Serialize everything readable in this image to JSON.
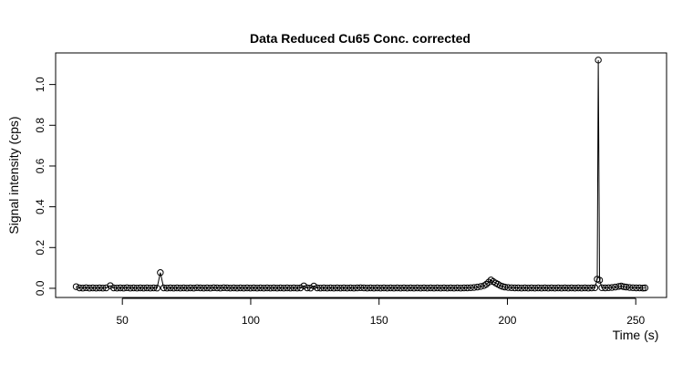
{
  "chart_data": {
    "type": "scatter",
    "title": "Data Reduced Cu65 Conc. corrected",
    "xlabel": "Time (s)",
    "ylabel": "Signal intensity (cps)",
    "xlim": [
      24,
      262
    ],
    "ylim": [
      -0.045,
      1.155
    ],
    "x_ticks": [
      50,
      100,
      150,
      200,
      250
    ],
    "x_tick_labels": [
      "50",
      "100",
      "150",
      "200",
      "250"
    ],
    "y_ticks": [
      0.0,
      0.2,
      0.4,
      0.6,
      0.8,
      1.0
    ],
    "y_tick_labels": [
      "0.0",
      "0.2",
      "0.4",
      "0.6",
      "0.8",
      "1.0"
    ],
    "grid": false,
    "legend": "none",
    "marker": "open-circle",
    "line_color": "#000000",
    "series": [
      {
        "points": [
          [
            32.0,
            0.008
          ],
          [
            33.3,
            0.002
          ],
          [
            34.6,
            0.001
          ],
          [
            35.9,
            0.003
          ],
          [
            37.2,
            0.001
          ],
          [
            38.5,
            0.002
          ],
          [
            39.8,
            0.001
          ],
          [
            41.1,
            0.002
          ],
          [
            42.4,
            0.001
          ],
          [
            43.7,
            0.002
          ],
          [
            45.3,
            0.013
          ],
          [
            46.6,
            0.002
          ],
          [
            47.9,
            0.001
          ],
          [
            49.2,
            0.002
          ],
          [
            50.5,
            0.001
          ],
          [
            51.8,
            0.003
          ],
          [
            53.1,
            0.001
          ],
          [
            54.4,
            0.002
          ],
          [
            55.7,
            0.001
          ],
          [
            57.0,
            0.002
          ],
          [
            58.3,
            0.001
          ],
          [
            59.6,
            0.002
          ],
          [
            60.9,
            0.001
          ],
          [
            62.2,
            0.002
          ],
          [
            63.5,
            0.001
          ],
          [
            64.8,
            0.077
          ],
          [
            66.1,
            0.002
          ],
          [
            67.4,
            0.001
          ],
          [
            68.7,
            0.002
          ],
          [
            70.0,
            0.001
          ],
          [
            71.3,
            0.002
          ],
          [
            72.6,
            0.001
          ],
          [
            73.9,
            0.002
          ],
          [
            75.2,
            0.001
          ],
          [
            76.5,
            0.002
          ],
          [
            77.8,
            0.001
          ],
          [
            79.1,
            0.003
          ],
          [
            80.4,
            0.002
          ],
          [
            81.7,
            0.001
          ],
          [
            83.0,
            0.002
          ],
          [
            84.3,
            0.001
          ],
          [
            85.6,
            0.003
          ],
          [
            86.9,
            0.002
          ],
          [
            88.2,
            0.001
          ],
          [
            89.5,
            0.003
          ],
          [
            90.8,
            0.002
          ],
          [
            92.1,
            0.001
          ],
          [
            93.4,
            0.002
          ],
          [
            94.7,
            0.001
          ],
          [
            96.0,
            0.002
          ],
          [
            97.3,
            0.001
          ],
          [
            98.6,
            0.002
          ],
          [
            99.9,
            0.001
          ],
          [
            101.2,
            0.002
          ],
          [
            102.5,
            0.001
          ],
          [
            103.8,
            0.002
          ],
          [
            105.1,
            0.001
          ],
          [
            106.4,
            0.002
          ],
          [
            107.7,
            0.001
          ],
          [
            109.0,
            0.002
          ],
          [
            110.3,
            0.001
          ],
          [
            111.6,
            0.002
          ],
          [
            112.9,
            0.001
          ],
          [
            114.2,
            0.002
          ],
          [
            115.5,
            0.001
          ],
          [
            116.8,
            0.002
          ],
          [
            118.1,
            0.001
          ],
          [
            119.4,
            0.002
          ],
          [
            120.7,
            0.012
          ],
          [
            122.0,
            0.002
          ],
          [
            123.3,
            0.001
          ],
          [
            124.6,
            0.011
          ],
          [
            125.9,
            0.002
          ],
          [
            127.2,
            0.001
          ],
          [
            128.5,
            0.002
          ],
          [
            129.8,
            0.001
          ],
          [
            131.1,
            0.002
          ],
          [
            132.4,
            0.001
          ],
          [
            133.7,
            0.002
          ],
          [
            135.0,
            0.001
          ],
          [
            136.3,
            0.002
          ],
          [
            137.6,
            0.001
          ],
          [
            138.9,
            0.002
          ],
          [
            140.2,
            0.001
          ],
          [
            141.5,
            0.002
          ],
          [
            142.8,
            0.003
          ],
          [
            144.1,
            0.002
          ],
          [
            145.4,
            0.001
          ],
          [
            146.7,
            0.002
          ],
          [
            148.0,
            0.001
          ],
          [
            149.3,
            0.002
          ],
          [
            150.6,
            0.001
          ],
          [
            151.9,
            0.002
          ],
          [
            153.2,
            0.001
          ],
          [
            154.5,
            0.002
          ],
          [
            155.8,
            0.001
          ],
          [
            157.1,
            0.002
          ],
          [
            158.4,
            0.001
          ],
          [
            159.7,
            0.002
          ],
          [
            161.0,
            0.001
          ],
          [
            162.3,
            0.002
          ],
          [
            163.6,
            0.001
          ],
          [
            164.9,
            0.002
          ],
          [
            166.2,
            0.001
          ],
          [
            167.5,
            0.002
          ],
          [
            168.8,
            0.001
          ],
          [
            170.1,
            0.002
          ],
          [
            171.4,
            0.001
          ],
          [
            172.7,
            0.002
          ],
          [
            174.0,
            0.001
          ],
          [
            175.3,
            0.002
          ],
          [
            176.6,
            0.001
          ],
          [
            177.9,
            0.002
          ],
          [
            179.2,
            0.001
          ],
          [
            180.5,
            0.002
          ],
          [
            181.8,
            0.001
          ],
          [
            183.1,
            0.002
          ],
          [
            184.4,
            0.002
          ],
          [
            185.7,
            0.003
          ],
          [
            187.0,
            0.004
          ],
          [
            188.3,
            0.006
          ],
          [
            189.6,
            0.009
          ],
          [
            190.9,
            0.013
          ],
          [
            191.8,
            0.02
          ],
          [
            192.7,
            0.03
          ],
          [
            193.6,
            0.041
          ],
          [
            194.5,
            0.033
          ],
          [
            195.4,
            0.026
          ],
          [
            196.3,
            0.02
          ],
          [
            197.2,
            0.013
          ],
          [
            198.1,
            0.009
          ],
          [
            199.0,
            0.006
          ],
          [
            200.3,
            0.004
          ],
          [
            201.6,
            0.003
          ],
          [
            202.9,
            0.002
          ],
          [
            204.2,
            0.002
          ],
          [
            205.5,
            0.001
          ],
          [
            206.8,
            0.002
          ],
          [
            208.1,
            0.001
          ],
          [
            209.4,
            0.002
          ],
          [
            210.7,
            0.001
          ],
          [
            212.0,
            0.002
          ],
          [
            213.3,
            0.001
          ],
          [
            214.6,
            0.002
          ],
          [
            215.9,
            0.001
          ],
          [
            217.2,
            0.002
          ],
          [
            218.5,
            0.001
          ],
          [
            219.8,
            0.002
          ],
          [
            221.1,
            0.001
          ],
          [
            222.4,
            0.002
          ],
          [
            223.7,
            0.001
          ],
          [
            225.0,
            0.002
          ],
          [
            226.3,
            0.001
          ],
          [
            227.6,
            0.002
          ],
          [
            228.9,
            0.001
          ],
          [
            230.2,
            0.002
          ],
          [
            231.5,
            0.001
          ],
          [
            232.8,
            0.002
          ],
          [
            234.1,
            0.003
          ],
          [
            235.0,
            0.045
          ],
          [
            235.4,
            1.12
          ],
          [
            235.9,
            0.04
          ],
          [
            236.8,
            0.003
          ],
          [
            238.1,
            0.002
          ],
          [
            239.4,
            0.003
          ],
          [
            240.7,
            0.004
          ],
          [
            242.0,
            0.006
          ],
          [
            243.3,
            0.009
          ],
          [
            244.3,
            0.011
          ],
          [
            245.3,
            0.008
          ],
          [
            246.3,
            0.006
          ],
          [
            247.6,
            0.004
          ],
          [
            248.9,
            0.003
          ],
          [
            250.2,
            0.002
          ],
          [
            251.5,
            0.002
          ],
          [
            252.8,
            0.001
          ],
          [
            253.6,
            0.002
          ]
        ]
      }
    ]
  }
}
